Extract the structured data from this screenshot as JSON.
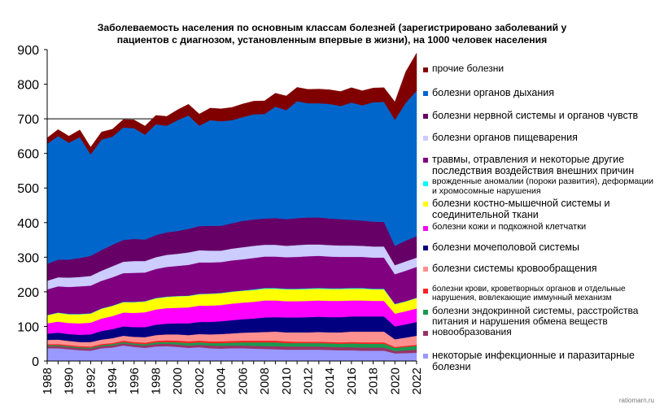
{
  "chart_data": {
    "type": "area",
    "stacked": true,
    "title": "Заболеваемость населения по основным классам болезней (зарегистрировано заболеваний у пациентов с диагнозом, установленным впервые в жизни), на 1000 человек населения",
    "title_lines": [
      "Заболеваемость населения по основным классам болезней (зарегистрировано заболеваний у",
      "пациентов с диагнозом, установленным впервые в жизни), на 1000 человек населения"
    ],
    "xlabel": "",
    "ylabel": "",
    "ylim": [
      0,
      900
    ],
    "yticks": [
      0,
      100,
      200,
      300,
      400,
      500,
      600,
      700,
      800,
      900
    ],
    "grid": "horizontal line at 700",
    "legend_position": "right",
    "x": [
      1988,
      1989,
      1990,
      1991,
      1992,
      1993,
      1994,
      1995,
      1996,
      1997,
      1998,
      1999,
      2000,
      2001,
      2002,
      2003,
      2004,
      2005,
      2006,
      2007,
      2008,
      2009,
      2010,
      2011,
      2012,
      2013,
      2014,
      2015,
      2016,
      2017,
      2018,
      2019,
      2020,
      2021,
      2022
    ],
    "xtick_labels": [
      "1988",
      "1990",
      "1992",
      "1994",
      "1996",
      "1998",
      "2000",
      "2002",
      "2004",
      "2006",
      "2008",
      "2010",
      "2012",
      "2014",
      "2016",
      "2018",
      "2020",
      "2022"
    ],
    "series": [
      {
        "name": "некоторые инфекционные и паразитарные болезни",
        "color": "#9999ff",
        "values": [
          37,
          37,
          34,
          31,
          30,
          37,
          39,
          45,
          41,
          38,
          42,
          43,
          41,
          38,
          40,
          37,
          36,
          37,
          37,
          36,
          35,
          34,
          33,
          33,
          33,
          33,
          32,
          31,
          31,
          30,
          30,
          30,
          22,
          23,
          24
        ]
      },
      {
        "name": "новообразования",
        "color": "#993366",
        "values": [
          6,
          6,
          6,
          6,
          6,
          6,
          6,
          6,
          6,
          7,
          7,
          7,
          7,
          7,
          7,
          8,
          8,
          8,
          8,
          8,
          8,
          9,
          9,
          9,
          9,
          9,
          9,
          9,
          9,
          9,
          9,
          9,
          7,
          8,
          9
        ]
      },
      {
        "name": "болезни эндокринной системы, расстройства питания и нарушения обмена веществ",
        "color": "#1a9a50",
        "values": [
          3,
          3,
          3,
          3,
          3,
          3,
          4,
          4,
          4,
          4,
          5,
          5,
          6,
          7,
          7,
          7,
          8,
          8,
          9,
          10,
          11,
          11,
          10,
          10,
          10,
          10,
          10,
          10,
          11,
          11,
          11,
          11,
          9,
          10,
          11
        ]
      },
      {
        "name": "болезни крови, кроветворных органов и отдельные нарушения, вовлекающие иммунный механизм",
        "color": "#ff2020",
        "values": [
          3,
          3,
          3,
          3,
          3,
          3,
          3,
          4,
          4,
          4,
          4,
          5,
          5,
          5,
          5,
          5,
          5,
          5,
          5,
          5,
          5,
          5,
          5,
          4,
          4,
          4,
          4,
          4,
          4,
          4,
          4,
          4,
          3,
          3,
          3
        ]
      },
      {
        "name": "болезни системы кровообращения",
        "color": "#ff9090",
        "values": [
          12,
          13,
          12,
          12,
          13,
          13,
          14,
          14,
          15,
          16,
          17,
          17,
          18,
          18,
          19,
          20,
          21,
          22,
          23,
          24,
          25,
          26,
          26,
          27,
          27,
          28,
          28,
          29,
          30,
          31,
          31,
          31,
          22,
          24,
          26
        ]
      },
      {
        "name": "болезни мочеполовой системы",
        "color": "#000080",
        "values": [
          18,
          20,
          20,
          21,
          22,
          25,
          26,
          27,
          28,
          29,
          30,
          31,
          32,
          34,
          35,
          36,
          37,
          38,
          39,
          40,
          42,
          42,
          43,
          43,
          44,
          44,
          44,
          44,
          44,
          44,
          44,
          44,
          37,
          38,
          40
        ]
      },
      {
        "name": "болезни кожи и подкожной клетчатки",
        "color": "#ff00ff",
        "values": [
          30,
          32,
          32,
          33,
          34,
          36,
          38,
          40,
          41,
          43,
          44,
          45,
          45,
          46,
          47,
          47,
          47,
          48,
          48,
          48,
          49,
          48,
          47,
          47,
          47,
          47,
          47,
          47,
          46,
          46,
          45,
          45,
          37,
          38,
          39
        ]
      },
      {
        "name": "болезни костно-мышечной системы и соединительной ткани",
        "color": "#ffff00",
        "values": [
          23,
          25,
          25,
          26,
          26,
          28,
          29,
          30,
          31,
          31,
          32,
          32,
          33,
          33,
          33,
          34,
          34,
          34,
          34,
          34,
          34,
          34,
          34,
          34,
          34,
          34,
          34,
          34,
          34,
          34,
          33,
          33,
          27,
          28,
          30
        ]
      },
      {
        "name": "врожденные аномалии (пороки развития), деформации и хромосомные нарушения",
        "color": "#00ffff",
        "values": [
          1,
          1,
          1,
          1,
          1,
          1,
          1,
          1,
          1,
          1,
          1,
          1,
          1,
          1,
          1,
          1,
          1,
          1,
          1,
          2,
          2,
          2,
          2,
          2,
          2,
          2,
          2,
          2,
          2,
          2,
          2,
          2,
          1,
          1,
          1
        ]
      },
      {
        "name": "травмы, отравления и некоторые другие последствия воздействия внешних причин",
        "color": "#800080",
        "values": [
          74,
          76,
          78,
          80,
          80,
          80,
          82,
          83,
          84,
          83,
          84,
          86,
          87,
          89,
          91,
          90,
          89,
          90,
          90,
          91,
          91,
          91,
          91,
          92,
          93,
          93,
          92,
          91,
          90,
          90,
          90,
          90,
          86,
          88,
          89
        ]
      },
      {
        "name": "болезни органов пищеварения",
        "color": "#ccccff",
        "values": [
          25,
          26,
          27,
          27,
          28,
          29,
          32,
          33,
          34,
          33,
          34,
          35,
          35,
          36,
          35,
          34,
          33,
          34,
          35,
          35,
          34,
          34,
          33,
          34,
          34,
          33,
          33,
          33,
          33,
          32,
          32,
          32,
          26,
          27,
          27
        ]
      },
      {
        "name": "болезни нервной системы и органов чувств",
        "color": "#660066",
        "values": [
          49,
          51,
          52,
          55,
          58,
          60,
          62,
          63,
          64,
          62,
          64,
          65,
          66,
          68,
          70,
          72,
          72,
          73,
          76,
          76,
          76,
          77,
          77,
          78,
          78,
          78,
          77,
          76,
          74,
          73,
          72,
          71,
          56,
          60,
          62
        ]
      },
      {
        "name": "болезни органов дыхания",
        "color": "#0066cc",
        "values": [
          347,
          357,
          338,
          349,
          293,
          319,
          312,
          325,
          320,
          303,
          320,
          308,
          320,
          328,
          290,
          305,
          302,
          298,
          300,
          304,
          302,
          322,
          315,
          338,
          330,
          330,
          331,
          327,
          339,
          333,
          345,
          347,
          364,
          398,
          420
        ]
      },
      {
        "name": "прочие болезни",
        "color": "#800000",
        "values": [
          17,
          19,
          19,
          21,
          21,
          22,
          22,
          23,
          24,
          25,
          26,
          27,
          30,
          32,
          34,
          35,
          36,
          37,
          38,
          38,
          38,
          39,
          41,
          40,
          40,
          41,
          41,
          42,
          43,
          42,
          41,
          41,
          52,
          90,
          109
        ]
      }
    ]
  },
  "watermark": "ratiomarn.ru"
}
